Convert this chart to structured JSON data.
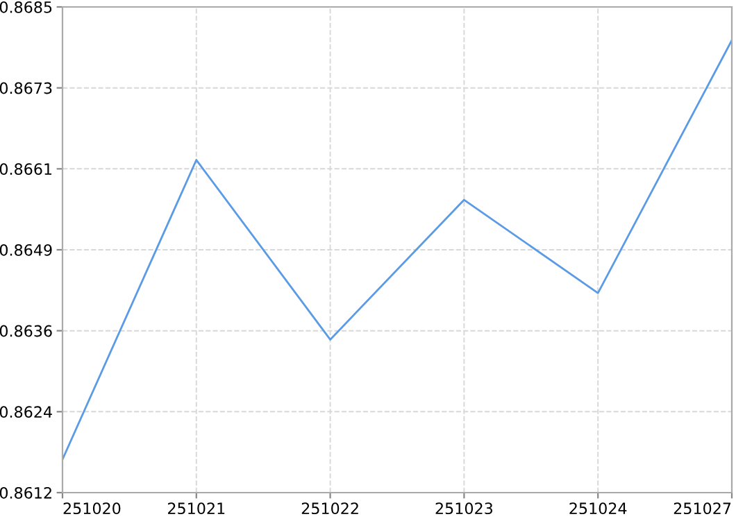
{
  "chart_data": {
    "type": "line",
    "categories": [
      "251020",
      "251021",
      "251022",
      "251023",
      "251024",
      "251027"
    ],
    "series": [
      {
        "color": "#5b9be6",
        "values": [
          0.8617,
          0.8662,
          0.8635,
          0.8656,
          0.8642,
          0.868
        ]
      }
    ],
    "ylim": [
      0.8612,
      0.8685
    ],
    "yticks": [
      {
        "value": 0.8612,
        "label": "0.8612"
      },
      {
        "value": 0.862416667,
        "label": "0.8624"
      },
      {
        "value": 0.86363333,
        "label": "0.8636"
      },
      {
        "value": 0.86485,
        "label": "0.8649"
      },
      {
        "value": 0.86606667,
        "label": "0.8661"
      },
      {
        "value": 0.86728333,
        "label": "0.8673"
      },
      {
        "value": 0.8685,
        "label": "0.8685"
      }
    ],
    "grid": true,
    "marker": "none",
    "line_style": "solid"
  }
}
